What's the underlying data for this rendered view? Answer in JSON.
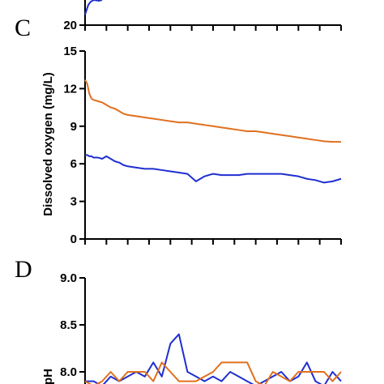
{
  "panels": {
    "top_partial": {
      "ytick_label": "20",
      "line_color": "#1f2fd1"
    },
    "c": {
      "letter": "C",
      "ylabel": "Dissolved oxygen (mg/L)",
      "ytick_labels": [
        "0",
        "3",
        "6",
        "9",
        "12",
        "15"
      ]
    },
    "d": {
      "letter": "D",
      "ylabel": "pH",
      "ytick_labels": [
        "9.0",
        "8.5",
        "8.0"
      ]
    }
  },
  "colors": {
    "orange": "#e0701f",
    "blue": "#1f2fd1",
    "axis": "#000000"
  },
  "chart_data": [
    {
      "type": "line",
      "panel": "C",
      "title": "",
      "xlabel": "",
      "ylabel": "Dissolved oxygen (mg/L)",
      "ylim": [
        0,
        15
      ],
      "yticks": [
        0,
        3,
        6,
        9,
        12,
        15
      ],
      "x": [
        0,
        0.5,
        1,
        1.5,
        2,
        3,
        4,
        5,
        6,
        7,
        8,
        9,
        10,
        12,
        14,
        16,
        18,
        20,
        22,
        24,
        26,
        28,
        30,
        32,
        34,
        36,
        38,
        40,
        42,
        44,
        46,
        48,
        50,
        52,
        54,
        56,
        58,
        60
      ],
      "series": [
        {
          "color": "#e0701f",
          "values": [
            12.7,
            12.4,
            11.6,
            11.2,
            11.1,
            11.0,
            10.9,
            10.7,
            10.5,
            10.4,
            10.2,
            10.0,
            9.9,
            9.8,
            9.7,
            9.6,
            9.5,
            9.4,
            9.3,
            9.3,
            9.2,
            9.1,
            9.0,
            8.9,
            8.8,
            8.7,
            8.6,
            8.6,
            8.5,
            8.4,
            8.3,
            8.2,
            8.1,
            8.0,
            7.9,
            7.8,
            7.75,
            7.75
          ]
        },
        {
          "color": "#1f2fd1",
          "values": [
            6.7,
            6.7,
            6.6,
            6.6,
            6.5,
            6.5,
            6.4,
            6.6,
            6.4,
            6.2,
            6.1,
            5.9,
            5.8,
            5.7,
            5.6,
            5.6,
            5.5,
            5.4,
            5.3,
            5.2,
            4.6,
            5.0,
            5.2,
            5.1,
            5.1,
            5.1,
            5.2,
            5.2,
            5.2,
            5.2,
            5.2,
            5.1,
            5.0,
            4.8,
            4.7,
            4.5,
            4.6,
            4.8
          ]
        }
      ],
      "grid": false
    },
    {
      "type": "line",
      "panel": "D",
      "title": "",
      "xlabel": "",
      "ylabel": "pH",
      "ylim": [
        7.75,
        9.0
      ],
      "yticks": [
        8.0,
        8.5,
        9.0
      ],
      "x": [
        0,
        2,
        4,
        6,
        8,
        10,
        12,
        14,
        16,
        18,
        20,
        22,
        24,
        26,
        28,
        30,
        32,
        34,
        36,
        38,
        40,
        42,
        44,
        46,
        48,
        50,
        52,
        54,
        56,
        58,
        60
      ],
      "series": [
        {
          "color": "#1f2fd1",
          "values": [
            7.9,
            7.9,
            7.85,
            7.95,
            7.9,
            7.95,
            8.0,
            7.95,
            8.1,
            7.95,
            8.3,
            8.4,
            8.0,
            7.95,
            7.9,
            7.95,
            7.9,
            8.0,
            7.95,
            7.9,
            7.85,
            7.9,
            7.95,
            8.0,
            7.9,
            7.95,
            8.1,
            7.9,
            7.85,
            8.0,
            7.9
          ]
        },
        {
          "color": "#e0701f",
          "values": [
            7.9,
            7.85,
            7.9,
            8.0,
            7.9,
            8.0,
            8.0,
            8.0,
            7.9,
            8.1,
            8.0,
            7.9,
            7.9,
            7.9,
            7.95,
            8.0,
            8.1,
            8.1,
            8.1,
            8.1,
            7.9,
            7.85,
            8.0,
            7.95,
            7.9,
            8.0,
            8.0,
            8.0,
            8.0,
            7.9,
            8.0
          ]
        }
      ],
      "grid": false
    }
  ]
}
